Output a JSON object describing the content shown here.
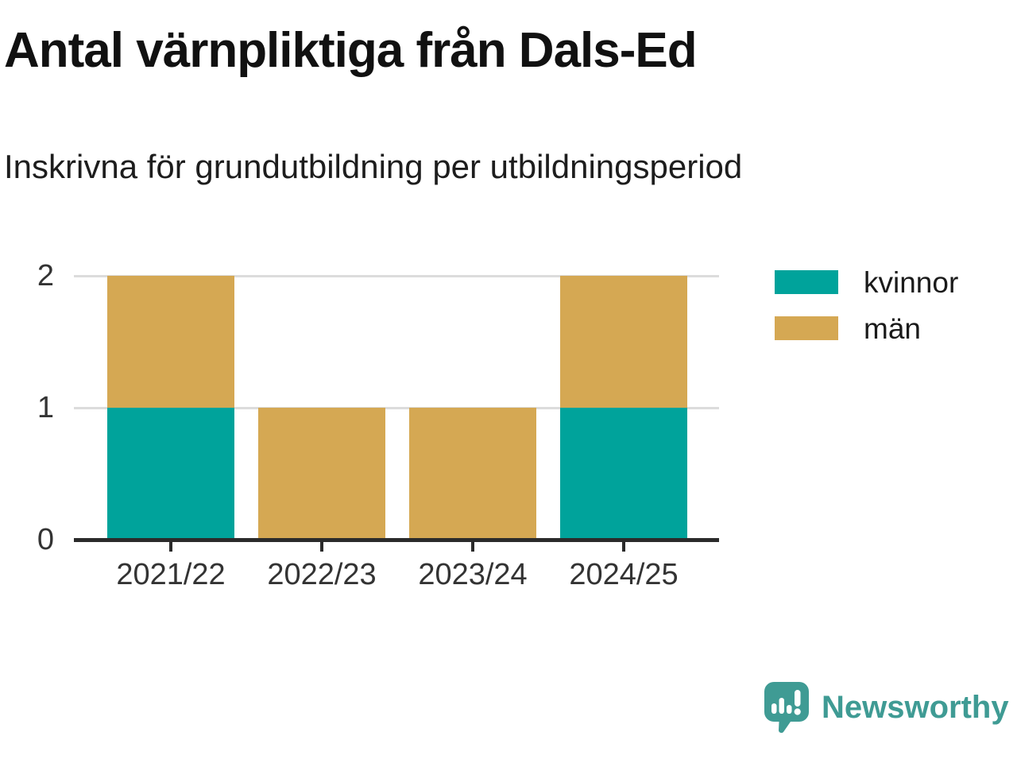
{
  "header": {
    "title": "Antal värnpliktiga från Dals-Ed",
    "subtitle": "Inskrivna för grundutbildning per utbildningsperiod"
  },
  "chart_data": {
    "type": "bar",
    "stacked": true,
    "title": "Antal värnpliktiga från Dals-Ed",
    "subtitle": "Inskrivna för grundutbildning per utbildningsperiod",
    "categories": [
      "2021/22",
      "2022/23",
      "2023/24",
      "2024/25"
    ],
    "series": [
      {
        "name": "kvinnor",
        "color": "#00a39b",
        "values": [
          1,
          0,
          0,
          1
        ]
      },
      {
        "name": "män",
        "color": "#d5a853",
        "values": [
          1,
          1,
          1,
          1
        ]
      }
    ],
    "totals": [
      2,
      1,
      1,
      2
    ],
    "ylim": [
      0,
      2
    ],
    "yticks": [
      0,
      1,
      2
    ],
    "grid": true,
    "legend_position": "right",
    "xlabel": "",
    "ylabel": ""
  },
  "branding": {
    "logo_text": "Newsworthy",
    "logo_color": "#3f9b94"
  }
}
